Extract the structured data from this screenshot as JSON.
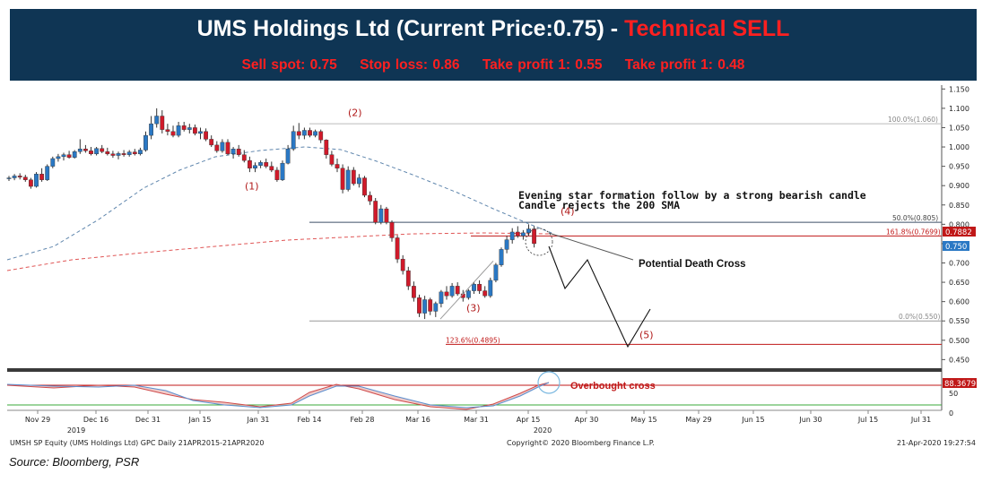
{
  "header": {
    "title_main": "UMS Holdings Ltd (Current Price:0.75) - ",
    "title_signal": "Technical SELL",
    "levels": [
      "Sell spot: 0.75",
      "Stop loss: 0.86",
      "Take profit 1: 0.55",
      "Take profit 1: 0.48"
    ]
  },
  "chart_data": {
    "type": "candlestick",
    "ylim": [
      0.43,
      1.16
    ],
    "y_ticks": [
      0.45,
      0.5,
      0.55,
      0.6,
      0.65,
      0.7,
      0.75,
      0.8,
      0.85,
      0.9,
      0.95,
      1.0,
      1.05,
      1.1,
      1.15
    ],
    "y_tick_labels": [
      "0.450",
      "0.500",
      "0.550",
      "0.600",
      "0.650",
      "0.700",
      "0.750",
      "0.800",
      "0.850",
      "0.900",
      "0.950",
      "1.000",
      "1.050",
      "1.100",
      "1.150"
    ],
    "x_labels": [
      "Nov 29",
      "Dec 16",
      "Dec 31",
      "Jan 15",
      "Jan 31",
      "Feb 14",
      "Feb 28",
      "Mar 16",
      "Mar 31",
      "Apr 15",
      "Apr 30",
      "May 15",
      "May 29",
      "Jun 15",
      "Jun 30",
      "Jul 15",
      "Jul 31"
    ],
    "x_year_labels": [
      "2019",
      "2020"
    ],
    "price_tags": [
      "0.7882",
      "0.750"
    ],
    "fib_levels": [
      {
        "label": "100.0%(1.060)",
        "value": 1.06
      },
      {
        "label": "50.0%(0.805)",
        "value": 0.805
      },
      {
        "label": "161.8%(0.7699)",
        "value": 0.7699
      },
      {
        "label": "0.0%(0.550)",
        "value": 0.55
      },
      {
        "label": "123.6%(0.4895)",
        "value": 0.4895
      }
    ],
    "wave_labels": [
      {
        "label": "(1)",
        "value": 0.89
      },
      {
        "label": "(2)",
        "value": 1.08
      },
      {
        "label": "(3)",
        "value": 0.575
      },
      {
        "label": "(4)",
        "value": 0.825
      },
      {
        "label": "(5)",
        "value": 0.505
      }
    ],
    "annotations": [
      "Evening star formation follow by a strong bearish candle",
      "Candle rejects the 200 SMA",
      "Potential Death Cross"
    ],
    "candles": [
      {
        "o": 0.918,
        "h": 0.925,
        "l": 0.912,
        "c": 0.92
      },
      {
        "o": 0.92,
        "h": 0.93,
        "l": 0.914,
        "c": 0.925
      },
      {
        "o": 0.925,
        "h": 0.932,
        "l": 0.916,
        "c": 0.922
      },
      {
        "o": 0.922,
        "h": 0.928,
        "l": 0.91,
        "c": 0.915
      },
      {
        "o": 0.915,
        "h": 0.92,
        "l": 0.892,
        "c": 0.898
      },
      {
        "o": 0.898,
        "h": 0.935,
        "l": 0.895,
        "c": 0.93
      },
      {
        "o": 0.93,
        "h": 0.945,
        "l": 0.91,
        "c": 0.915
      },
      {
        "o": 0.915,
        "h": 0.955,
        "l": 0.912,
        "c": 0.95
      },
      {
        "o": 0.95,
        "h": 0.975,
        "l": 0.945,
        "c": 0.97
      },
      {
        "o": 0.97,
        "h": 0.982,
        "l": 0.962,
        "c": 0.975
      },
      {
        "o": 0.975,
        "h": 0.985,
        "l": 0.965,
        "c": 0.98
      },
      {
        "o": 0.98,
        "h": 0.99,
        "l": 0.97,
        "c": 0.973
      },
      {
        "o": 0.973,
        "h": 0.992,
        "l": 0.97,
        "c": 0.988
      },
      {
        "o": 0.988,
        "h": 1.02,
        "l": 0.982,
        "c": 0.995
      },
      {
        "o": 0.995,
        "h": 1.005,
        "l": 0.985,
        "c": 0.99
      },
      {
        "o": 0.99,
        "h": 1.0,
        "l": 0.978,
        "c": 0.982
      },
      {
        "o": 0.982,
        "h": 1.0,
        "l": 0.978,
        "c": 0.996
      },
      {
        "o": 0.996,
        "h": 1.005,
        "l": 0.984,
        "c": 0.988
      },
      {
        "o": 0.988,
        "h": 0.998,
        "l": 0.978,
        "c": 0.982
      },
      {
        "o": 0.982,
        "h": 0.99,
        "l": 0.972,
        "c": 0.978
      },
      {
        "o": 0.978,
        "h": 0.988,
        "l": 0.968,
        "c": 0.983
      },
      {
        "o": 0.983,
        "h": 0.992,
        "l": 0.975,
        "c": 0.98
      },
      {
        "o": 0.98,
        "h": 0.992,
        "l": 0.975,
        "c": 0.987
      },
      {
        "o": 0.987,
        "h": 0.995,
        "l": 0.978,
        "c": 0.982
      },
      {
        "o": 0.982,
        "h": 0.998,
        "l": 0.978,
        "c": 0.992
      },
      {
        "o": 0.992,
        "h": 1.04,
        "l": 0.988,
        "c": 1.03
      },
      {
        "o": 1.03,
        "h": 1.08,
        "l": 1.02,
        "c": 1.06
      },
      {
        "o": 1.06,
        "h": 1.1,
        "l": 1.05,
        "c": 1.08
      },
      {
        "o": 1.08,
        "h": 1.095,
        "l": 1.035,
        "c": 1.045
      },
      {
        "o": 1.045,
        "h": 1.06,
        "l": 1.03,
        "c": 1.04
      },
      {
        "o": 1.04,
        "h": 1.055,
        "l": 1.025,
        "c": 1.03
      },
      {
        "o": 1.03,
        "h": 1.065,
        "l": 1.025,
        "c": 1.055
      },
      {
        "o": 1.055,
        "h": 1.065,
        "l": 1.04,
        "c": 1.045
      },
      {
        "o": 1.045,
        "h": 1.06,
        "l": 1.035,
        "c": 1.05
      },
      {
        "o": 1.05,
        "h": 1.058,
        "l": 1.03,
        "c": 1.035
      },
      {
        "o": 1.035,
        "h": 1.05,
        "l": 1.02,
        "c": 1.04
      },
      {
        "o": 1.04,
        "h": 1.048,
        "l": 1.015,
        "c": 1.02
      },
      {
        "o": 1.02,
        "h": 1.03,
        "l": 1.0,
        "c": 1.005
      },
      {
        "o": 1.005,
        "h": 1.015,
        "l": 0.985,
        "c": 0.99
      },
      {
        "o": 0.99,
        "h": 1.02,
        "l": 0.985,
        "c": 1.012
      },
      {
        "o": 1.012,
        "h": 1.02,
        "l": 0.978,
        "c": 0.982
      },
      {
        "o": 0.982,
        "h": 1.0,
        "l": 0.97,
        "c": 0.995
      },
      {
        "o": 0.995,
        "h": 1.005,
        "l": 0.975,
        "c": 0.98
      },
      {
        "o": 0.98,
        "h": 0.992,
        "l": 0.96,
        "c": 0.965
      },
      {
        "o": 0.965,
        "h": 0.975,
        "l": 0.935,
        "c": 0.945
      },
      {
        "o": 0.945,
        "h": 0.96,
        "l": 0.935,
        "c": 0.952
      },
      {
        "o": 0.952,
        "h": 0.965,
        "l": 0.945,
        "c": 0.96
      },
      {
        "o": 0.96,
        "h": 0.97,
        "l": 0.945,
        "c": 0.95
      },
      {
        "o": 0.95,
        "h": 0.962,
        "l": 0.935,
        "c": 0.94
      },
      {
        "o": 0.94,
        "h": 0.948,
        "l": 0.91,
        "c": 0.915
      },
      {
        "o": 0.915,
        "h": 0.965,
        "l": 0.912,
        "c": 0.958
      },
      {
        "o": 0.958,
        "h": 1.005,
        "l": 0.955,
        "c": 0.995
      },
      {
        "o": 0.995,
        "h": 1.055,
        "l": 0.99,
        "c": 1.04
      },
      {
        "o": 1.04,
        "h": 1.062,
        "l": 1.02,
        "c": 1.03
      },
      {
        "o": 1.03,
        "h": 1.05,
        "l": 1.02,
        "c": 1.043
      },
      {
        "o": 1.043,
        "h": 1.05,
        "l": 1.025,
        "c": 1.03
      },
      {
        "o": 1.03,
        "h": 1.045,
        "l": 1.025,
        "c": 1.04
      },
      {
        "o": 1.04,
        "h": 1.045,
        "l": 1.01,
        "c": 1.018
      },
      {
        "o": 1.018,
        "h": 1.02,
        "l": 0.97,
        "c": 0.98
      },
      {
        "o": 0.98,
        "h": 0.99,
        "l": 0.95,
        "c": 0.955
      },
      {
        "o": 0.955,
        "h": 0.97,
        "l": 0.935,
        "c": 0.945
      },
      {
        "o": 0.945,
        "h": 0.955,
        "l": 0.88,
        "c": 0.89
      },
      {
        "o": 0.89,
        "h": 0.95,
        "l": 0.885,
        "c": 0.94
      },
      {
        "o": 0.94,
        "h": 0.948,
        "l": 0.9,
        "c": 0.905
      },
      {
        "o": 0.905,
        "h": 0.93,
        "l": 0.895,
        "c": 0.92
      },
      {
        "o": 0.92,
        "h": 0.925,
        "l": 0.87,
        "c": 0.875
      },
      {
        "o": 0.875,
        "h": 0.885,
        "l": 0.85,
        "c": 0.86
      },
      {
        "o": 0.86,
        "h": 0.868,
        "l": 0.8,
        "c": 0.805
      },
      {
        "o": 0.805,
        "h": 0.85,
        "l": 0.8,
        "c": 0.84
      },
      {
        "o": 0.84,
        "h": 0.845,
        "l": 0.8,
        "c": 0.805
      },
      {
        "o": 0.805,
        "h": 0.81,
        "l": 0.755,
        "c": 0.765
      },
      {
        "o": 0.765,
        "h": 0.772,
        "l": 0.7,
        "c": 0.71
      },
      {
        "o": 0.71,
        "h": 0.72,
        "l": 0.67,
        "c": 0.68
      },
      {
        "o": 0.68,
        "h": 0.69,
        "l": 0.63,
        "c": 0.64
      },
      {
        "o": 0.64,
        "h": 0.652,
        "l": 0.6,
        "c": 0.61
      },
      {
        "o": 0.61,
        "h": 0.618,
        "l": 0.56,
        "c": 0.57
      },
      {
        "o": 0.57,
        "h": 0.615,
        "l": 0.555,
        "c": 0.605
      },
      {
        "o": 0.605,
        "h": 0.61,
        "l": 0.565,
        "c": 0.575
      },
      {
        "o": 0.575,
        "h": 0.6,
        "l": 0.56,
        "c": 0.595
      },
      {
        "o": 0.595,
        "h": 0.63,
        "l": 0.585,
        "c": 0.625
      },
      {
        "o": 0.625,
        "h": 0.64,
        "l": 0.605,
        "c": 0.615
      },
      {
        "o": 0.615,
        "h": 0.648,
        "l": 0.61,
        "c": 0.64
      },
      {
        "o": 0.64,
        "h": 0.65,
        "l": 0.615,
        "c": 0.62
      },
      {
        "o": 0.62,
        "h": 0.63,
        "l": 0.6,
        "c": 0.61
      },
      {
        "o": 0.61,
        "h": 0.632,
        "l": 0.605,
        "c": 0.628
      },
      {
        "o": 0.628,
        "h": 0.65,
        "l": 0.62,
        "c": 0.645
      },
      {
        "o": 0.645,
        "h": 0.655,
        "l": 0.62,
        "c": 0.628
      },
      {
        "o": 0.628,
        "h": 0.64,
        "l": 0.61,
        "c": 0.615
      },
      {
        "o": 0.615,
        "h": 0.662,
        "l": 0.61,
        "c": 0.655
      },
      {
        "o": 0.655,
        "h": 0.7,
        "l": 0.65,
        "c": 0.695
      },
      {
        "o": 0.695,
        "h": 0.74,
        "l": 0.69,
        "c": 0.735
      },
      {
        "o": 0.735,
        "h": 0.77,
        "l": 0.725,
        "c": 0.76
      },
      {
        "o": 0.76,
        "h": 0.79,
        "l": 0.75,
        "c": 0.78
      },
      {
        "o": 0.78,
        "h": 0.795,
        "l": 0.765,
        "c": 0.77
      },
      {
        "o": 0.77,
        "h": 0.785,
        "l": 0.76,
        "c": 0.778
      },
      {
        "o": 0.778,
        "h": 0.8,
        "l": 0.77,
        "c": 0.788
      },
      {
        "o": 0.788,
        "h": 0.795,
        "l": 0.74,
        "c": 0.75
      }
    ]
  },
  "indicator": {
    "value_tag": "88.3679",
    "overbought_label": "Overbought cross",
    "tick_labels": [
      "50",
      "0"
    ]
  },
  "footer": {
    "left": "UMSH SP Equity (UMS Holdings Ltd) GPC  Daily 21APR2015-21APR2020",
    "center": "Copyright© 2020 Bloomberg Finance L.P.",
    "right": "21-Apr-2020 19:27:54",
    "source": "Source: Bloomberg, PSR"
  },
  "colors": {
    "banner_bg": "#0f3554",
    "up": "#2a78c4",
    "down": "#d01a2a",
    "sma_blue": "#5f86ad",
    "sma_red": "#e05656",
    "fib_line": "#7a7a7a",
    "fib_red": "#c01818"
  }
}
